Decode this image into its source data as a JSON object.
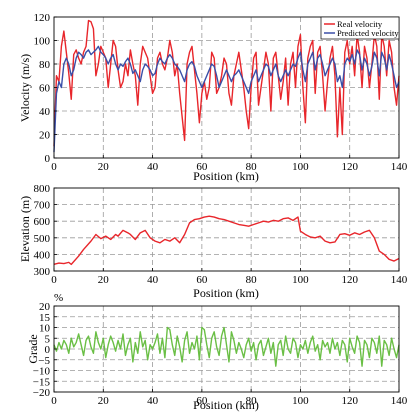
{
  "chart_data": [
    {
      "type": "line",
      "xlabel": "Position (km)",
      "ylabel": "Velocity (m/s)",
      "xlim": [
        0,
        140
      ],
      "ylim": [
        0,
        120
      ],
      "xticks": [
        "0",
        "20",
        "40",
        "60",
        "80",
        "100",
        "120",
        "140"
      ],
      "yticks": [
        "0",
        "20",
        "40",
        "60",
        "80",
        "100",
        "120"
      ],
      "grid": true,
      "legend": "top-right",
      "series": [
        {
          "name": "Real velocity",
          "color": "#e8262b",
          "x": [
            0,
            1,
            2,
            3,
            4,
            5,
            6,
            7,
            8,
            9,
            10,
            11,
            12,
            13,
            14,
            15,
            16,
            17,
            18,
            19,
            20,
            21,
            22,
            23,
            24,
            25,
            26,
            27,
            28,
            29,
            30,
            31,
            32,
            33,
            34,
            35,
            36,
            37,
            38,
            39,
            40,
            41,
            42,
            43,
            44,
            45,
            46,
            47,
            48,
            49,
            50,
            51,
            52,
            53,
            54,
            55,
            56,
            57,
            58,
            59,
            60,
            61,
            62,
            63,
            64,
            65,
            66,
            67,
            68,
            69,
            70,
            71,
            72,
            73,
            74,
            75,
            76,
            77,
            78,
            79,
            80,
            81,
            82,
            83,
            84,
            85,
            86,
            87,
            88,
            89,
            90,
            91,
            92,
            93,
            94,
            95,
            96,
            97,
            98,
            99,
            100,
            101,
            102,
            103,
            104,
            105,
            106,
            107,
            108,
            109,
            110,
            111,
            112,
            113,
            114,
            115,
            116,
            117,
            118,
            119,
            120,
            121,
            122,
            123,
            124,
            125,
            126,
            127,
            128,
            129,
            130,
            131,
            132,
            133,
            134,
            135,
            136,
            137,
            138,
            139,
            140
          ],
          "values": [
            10,
            70,
            65,
            95,
            108,
            90,
            72,
            50,
            88,
            92,
            85,
            80,
            90,
            95,
            117,
            116,
            110,
            70,
            80,
            95,
            90,
            85,
            60,
            80,
            100,
            95,
            75,
            60,
            65,
            80,
            70,
            92,
            80,
            70,
            45,
            80,
            95,
            90,
            85,
            70,
            55,
            60,
            85,
            90,
            80,
            75,
            85,
            100,
            90,
            70,
            80,
            55,
            35,
            15,
            80,
            90,
            95,
            75,
            55,
            30,
            55,
            65,
            50,
            60,
            90,
            85,
            55,
            60,
            70,
            85,
            80,
            55,
            45,
            70,
            80,
            90,
            75,
            60,
            40,
            25,
            60,
            85,
            90,
            45,
            60,
            75,
            90,
            80,
            40,
            85,
            90,
            70,
            50,
            65,
            85,
            45,
            80,
            90,
            60,
            95,
            105,
            60,
            30,
            85,
            95,
            100,
            55,
            90,
            95,
            70,
            40,
            65,
            85,
            95,
            70,
            18,
            60,
            20,
            90,
            100,
            80,
            95,
            70,
            105,
            90,
            60,
            95,
            85,
            60,
            80,
            105,
            95,
            50,
            105,
            95,
            70,
            100,
            90,
            60,
            45,
            70
          ]
        },
        {
          "name": "Predicted  velocity",
          "color": "#3a4fa8",
          "x": [
            0,
            1,
            2,
            3,
            4,
            5,
            6,
            7,
            8,
            9,
            10,
            11,
            12,
            13,
            14,
            15,
            16,
            17,
            18,
            19,
            20,
            21,
            22,
            23,
            24,
            25,
            26,
            27,
            28,
            29,
            30,
            31,
            32,
            33,
            34,
            35,
            36,
            37,
            38,
            39,
            40,
            41,
            42,
            43,
            44,
            45,
            46,
            47,
            48,
            49,
            50,
            51,
            52,
            53,
            54,
            55,
            56,
            57,
            58,
            59,
            60,
            61,
            62,
            63,
            64,
            65,
            66,
            67,
            68,
            69,
            70,
            71,
            72,
            73,
            74,
            75,
            76,
            77,
            78,
            79,
            80,
            81,
            82,
            83,
            84,
            85,
            86,
            87,
            88,
            89,
            90,
            91,
            92,
            93,
            94,
            95,
            96,
            97,
            98,
            99,
            100,
            101,
            102,
            103,
            104,
            105,
            106,
            107,
            108,
            109,
            110,
            111,
            112,
            113,
            114,
            115,
            116,
            117,
            118,
            119,
            120,
            121,
            122,
            123,
            124,
            125,
            126,
            127,
            128,
            129,
            130,
            131,
            132,
            133,
            134,
            135,
            136,
            137,
            138,
            139,
            140
          ],
          "values": [
            5,
            55,
            65,
            60,
            80,
            85,
            80,
            70,
            75,
            85,
            90,
            88,
            85,
            90,
            92,
            88,
            90,
            92,
            95,
            90,
            88,
            85,
            80,
            85,
            88,
            80,
            75,
            80,
            78,
            82,
            85,
            80,
            72,
            75,
            70,
            65,
            75,
            80,
            78,
            75,
            70,
            72,
            80,
            85,
            82,
            80,
            85,
            88,
            85,
            80,
            78,
            75,
            70,
            65,
            75,
            80,
            82,
            78,
            70,
            65,
            60,
            65,
            70,
            75,
            80,
            78,
            70,
            60,
            65,
            70,
            75,
            70,
            65,
            70,
            72,
            75,
            70,
            65,
            60,
            55,
            65,
            70,
            75,
            65,
            70,
            75,
            80,
            78,
            70,
            75,
            80,
            70,
            65,
            70,
            75,
            70,
            75,
            80,
            78,
            85,
            90,
            75,
            65,
            80,
            85,
            90,
            75,
            85,
            88,
            80,
            70,
            75,
            80,
            85,
            80,
            65,
            70,
            60,
            80,
            85,
            82,
            88,
            80,
            92,
            88,
            75,
            85,
            80,
            70,
            78,
            90,
            85,
            70,
            90,
            85,
            75,
            88,
            80,
            70,
            60,
            65
          ]
        }
      ]
    },
    {
      "type": "line",
      "xlabel": "Position (km)",
      "ylabel": "Elevation (m)",
      "xlim": [
        0,
        140
      ],
      "ylim": [
        300,
        800
      ],
      "xticks": [
        "0",
        "20",
        "40",
        "60",
        "80",
        "100",
        "120",
        "140"
      ],
      "yticks": [
        "300",
        "400",
        "500",
        "600",
        "700",
        "800"
      ],
      "grid": true,
      "series": [
        {
          "color": "#e8262b",
          "x": [
            0,
            2,
            4,
            6,
            7,
            10,
            12,
            15,
            17,
            19,
            21,
            23,
            25,
            26,
            28,
            30,
            31,
            33,
            35,
            37,
            39,
            41,
            43,
            45,
            47,
            49,
            51,
            53,
            55,
            57,
            59,
            61,
            63,
            65,
            67,
            69,
            71,
            73,
            75,
            77,
            79,
            81,
            83,
            85,
            87,
            89,
            91,
            93,
            95,
            97,
            99,
            100,
            102,
            104,
            106,
            108,
            110,
            112,
            114,
            116,
            118,
            120,
            122,
            124,
            126,
            128,
            130,
            132,
            134,
            136,
            138,
            140
          ],
          "values": [
            340,
            348,
            345,
            352,
            340,
            390,
            430,
            480,
            520,
            495,
            510,
            490,
            520,
            510,
            545,
            530,
            520,
            490,
            530,
            545,
            500,
            480,
            470,
            490,
            480,
            500,
            470,
            520,
            590,
            610,
            615,
            625,
            630,
            625,
            615,
            610,
            600,
            590,
            580,
            575,
            570,
            580,
            590,
            600,
            595,
            605,
            600,
            615,
            620,
            605,
            625,
            540,
            520,
            505,
            500,
            510,
            480,
            470,
            475,
            520,
            525,
            515,
            530,
            520,
            535,
            545,
            500,
            420,
            400,
            370,
            360,
            375
          ]
        }
      ]
    },
    {
      "type": "line",
      "xlabel": "Position (km)",
      "ylabel": "Grade",
      "unit": "%",
      "xlim": [
        0,
        140
      ],
      "ylim": [
        -20,
        20
      ],
      "xticks": [
        "0",
        "20",
        "40",
        "60",
        "80",
        "100",
        "120",
        "140"
      ],
      "yticks": [
        "-20",
        "-15",
        "-10",
        "-5",
        "0",
        "5",
        "10",
        "15",
        "20"
      ],
      "grid": true,
      "series": [
        {
          "color": "#6abf45",
          "x": [
            0,
            1,
            2,
            3,
            4,
            5,
            6,
            7,
            8,
            9,
            10,
            11,
            12,
            13,
            14,
            15,
            16,
            17,
            18,
            19,
            20,
            21,
            22,
            23,
            24,
            25,
            26,
            27,
            28,
            29,
            30,
            31,
            32,
            33,
            34,
            35,
            36,
            37,
            38,
            39,
            40,
            41,
            42,
            43,
            44,
            45,
            46,
            47,
            48,
            49,
            50,
            51,
            52,
            53,
            54,
            55,
            56,
            57,
            58,
            59,
            60,
            61,
            62,
            63,
            64,
            65,
            66,
            67,
            68,
            69,
            70,
            71,
            72,
            73,
            74,
            75,
            76,
            77,
            78,
            79,
            80,
            81,
            82,
            83,
            84,
            85,
            86,
            87,
            88,
            89,
            90,
            91,
            92,
            93,
            94,
            95,
            96,
            97,
            98,
            99,
            100,
            101,
            102,
            103,
            104,
            105,
            106,
            107,
            108,
            109,
            110,
            111,
            112,
            113,
            114,
            115,
            116,
            117,
            118,
            119,
            120,
            121,
            122,
            123,
            124,
            125,
            126,
            127,
            128,
            129,
            130,
            131,
            132,
            133,
            134,
            135,
            136,
            137,
            138,
            139,
            140
          ],
          "values": [
            2,
            -1,
            3,
            0,
            4,
            2,
            -2,
            5,
            1,
            3,
            7,
            2,
            -3,
            4,
            6,
            1,
            -2,
            8,
            3,
            0,
            5,
            -4,
            2,
            6,
            3,
            -1,
            4,
            0,
            7,
            -3,
            2,
            5,
            -6,
            3,
            -2,
            8,
            1,
            4,
            -5,
            2,
            0,
            3,
            7,
            -2,
            5,
            -4,
            10,
            9,
            2,
            -3,
            6,
            1,
            -6,
            4,
            8,
            -2,
            3,
            0,
            6,
            -5,
            10,
            9,
            2,
            -4,
            5,
            8,
            1,
            -3,
            6,
            10,
            2,
            -6,
            8,
            4,
            -2,
            3,
            0,
            -4,
            2,
            5,
            -1,
            3,
            -5,
            2,
            4,
            -3,
            1,
            5,
            -2,
            3,
            -8,
            2,
            4,
            -3,
            6,
            0,
            -2,
            5,
            3,
            -4,
            2,
            0,
            4,
            -2,
            3,
            6,
            -1,
            2,
            -5,
            4,
            1,
            3,
            -2,
            5,
            0,
            3,
            -3,
            4,
            2,
            -6,
            5,
            1,
            -2,
            6,
            3,
            -8,
            4,
            2,
            -4,
            5,
            3,
            -2,
            6,
            -8,
            4,
            2,
            -3,
            5,
            0,
            -4,
            2
          ]
        }
      ]
    }
  ]
}
